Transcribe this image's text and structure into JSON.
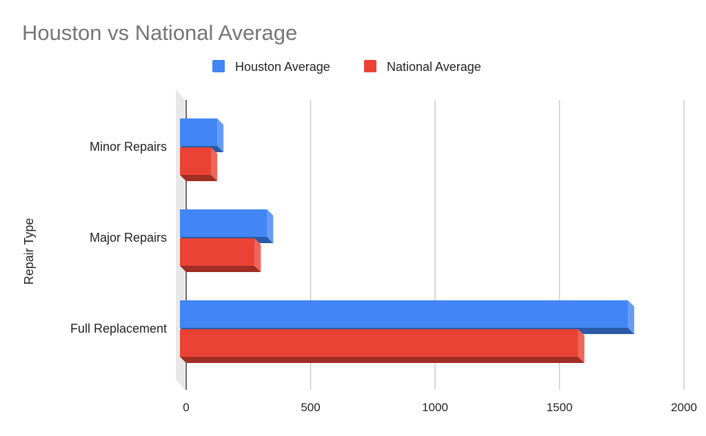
{
  "chart_data": {
    "type": "bar",
    "orientation": "horizontal",
    "style": "3d",
    "title": "Houston vs National Average",
    "xlabel": "",
    "ylabel": "Repair Type",
    "categories": [
      "Minor Repairs",
      "Major Repairs",
      "Full Replacement"
    ],
    "series": [
      {
        "name": "Houston Average",
        "color": "#4285f4",
        "values": [
          150,
          350,
          1800
        ]
      },
      {
        "name": "National Average",
        "color": "#ea4335",
        "values": [
          125,
          300,
          1600
        ]
      }
    ],
    "xlim": [
      0,
      2000
    ],
    "xticks": [
      "0",
      "500",
      "1000",
      "1500",
      "2000"
    ],
    "grid": true,
    "legend": "top"
  }
}
